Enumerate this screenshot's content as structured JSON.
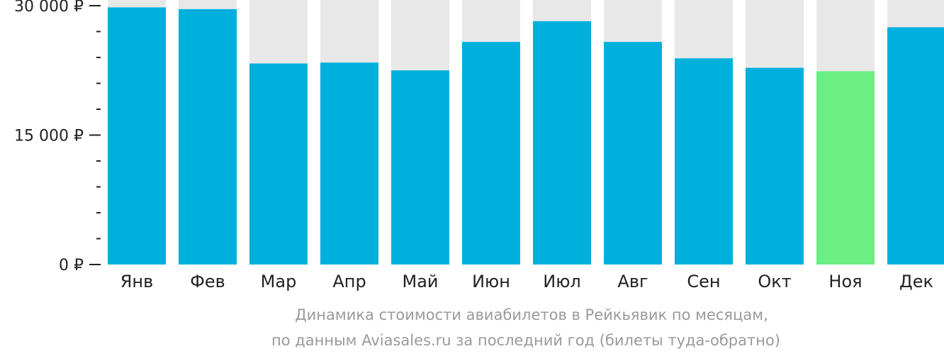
{
  "chart_data": {
    "type": "bar",
    "categories": [
      "Янв",
      "Фев",
      "Мар",
      "Апр",
      "Май",
      "Июн",
      "Июл",
      "Авг",
      "Сен",
      "Окт",
      "Ноя",
      "Дек"
    ],
    "values": [
      29800,
      29600,
      23300,
      23400,
      22500,
      25800,
      28200,
      25800,
      23900,
      22800,
      22400,
      27500
    ],
    "highlight_index": 10,
    "ylim": [
      0,
      30000
    ],
    "yticks": [
      {
        "value": 0,
        "label": "0 ₽"
      },
      {
        "value": 15000,
        "label": "15 000 ₽"
      },
      {
        "value": 30000,
        "label": "30 000 ₽"
      }
    ],
    "minor_tick_step": 3000,
    "caption_line1": "Динамика стоимости авиабилетов в Рейкьявик по месяцам,",
    "caption_line2": "по данным Aviasales.ru за последний год (билеты туда-обратно)",
    "colors": {
      "bar": "#00b0dc",
      "highlight": "#6bef84",
      "background_bar": "#e8e8e8",
      "axis": "#222222",
      "caption": "#9a9a9a"
    },
    "grid": false,
    "legend": "none"
  }
}
